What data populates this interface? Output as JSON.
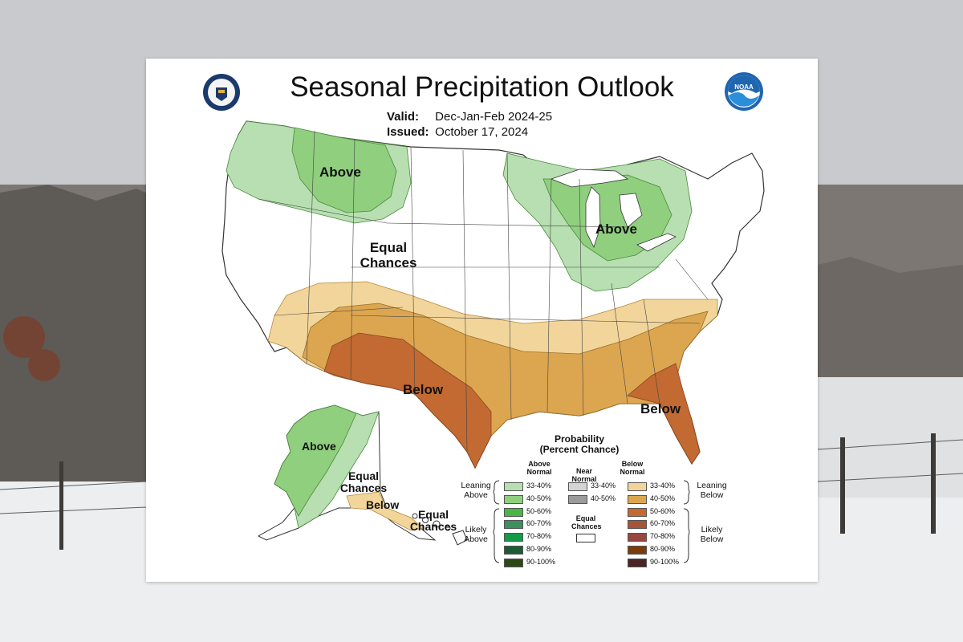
{
  "page": {
    "title": "Seasonal Precipitation Outlook",
    "valid_label": "Valid:",
    "valid_value": "Dec-Jan-Feb 2024-25",
    "issued_label": "Issued:",
    "issued_value": "October 17, 2024",
    "seal_icon": "commerce-seal-icon",
    "noaa_icon": "noaa-logo-icon",
    "noaa_text": "NOAA"
  },
  "regions": {
    "nw_above": "Above",
    "gl_above": "Above",
    "equal_chances": [
      "Equal",
      "Chances"
    ],
    "sw_below": "Below",
    "se_below": "Below",
    "ak_above": "Above",
    "ak_equal": [
      "Equal",
      "Chances"
    ],
    "ak_below": "Below",
    "hi_equal": [
      "Equal",
      "Chances"
    ]
  },
  "legend": {
    "title": [
      "Probability",
      "(Percent Chance)"
    ],
    "col_above": [
      "Above",
      "Normal"
    ],
    "col_near": [
      "Near",
      "Normal"
    ],
    "col_below": [
      "Below",
      "Normal"
    ],
    "leaning_above": [
      "Leaning",
      "Above"
    ],
    "leaning_below": [
      "Leaning",
      "Below"
    ],
    "likely_above": [
      "Likely",
      "Above"
    ],
    "likely_below": [
      "Likely",
      "Below"
    ],
    "equal_chances": [
      "Equal",
      "Chances"
    ],
    "above_bins": [
      {
        "label": "33-40%",
        "color": "#b7dfb1"
      },
      {
        "label": "40-50%",
        "color": "#8fcf7e"
      },
      {
        "label": "50-60%",
        "color": "#4db548"
      },
      {
        "label": "60-70%",
        "color": "#3c8f5e"
      },
      {
        "label": "70-80%",
        "color": "#159a48"
      },
      {
        "label": "80-90%",
        "color": "#1d5b37"
      },
      {
        "label": "90-100%",
        "color": "#2b4a18"
      }
    ],
    "near_bins": [
      {
        "label": "33-40%",
        "color": "#d4d4d4"
      },
      {
        "label": "40-50%",
        "color": "#9b9b9b"
      }
    ],
    "below_bins": [
      {
        "label": "33-40%",
        "color": "#f2d59a"
      },
      {
        "label": "40-50%",
        "color": "#dca650"
      },
      {
        "label": "50-60%",
        "color": "#c26a32"
      },
      {
        "label": "60-70%",
        "color": "#a65439"
      },
      {
        "label": "70-80%",
        "color": "#974840"
      },
      {
        "label": "80-90%",
        "color": "#7a3c0d"
      },
      {
        "label": "90-100%",
        "color": "#4b2424"
      }
    ]
  },
  "colors": {
    "above_33": "#b7dfb1",
    "above_40": "#8fcf7e",
    "below_33": "#f2d59a",
    "below_40": "#dca650",
    "below_50": "#c26a32",
    "boundary": "#333333"
  }
}
